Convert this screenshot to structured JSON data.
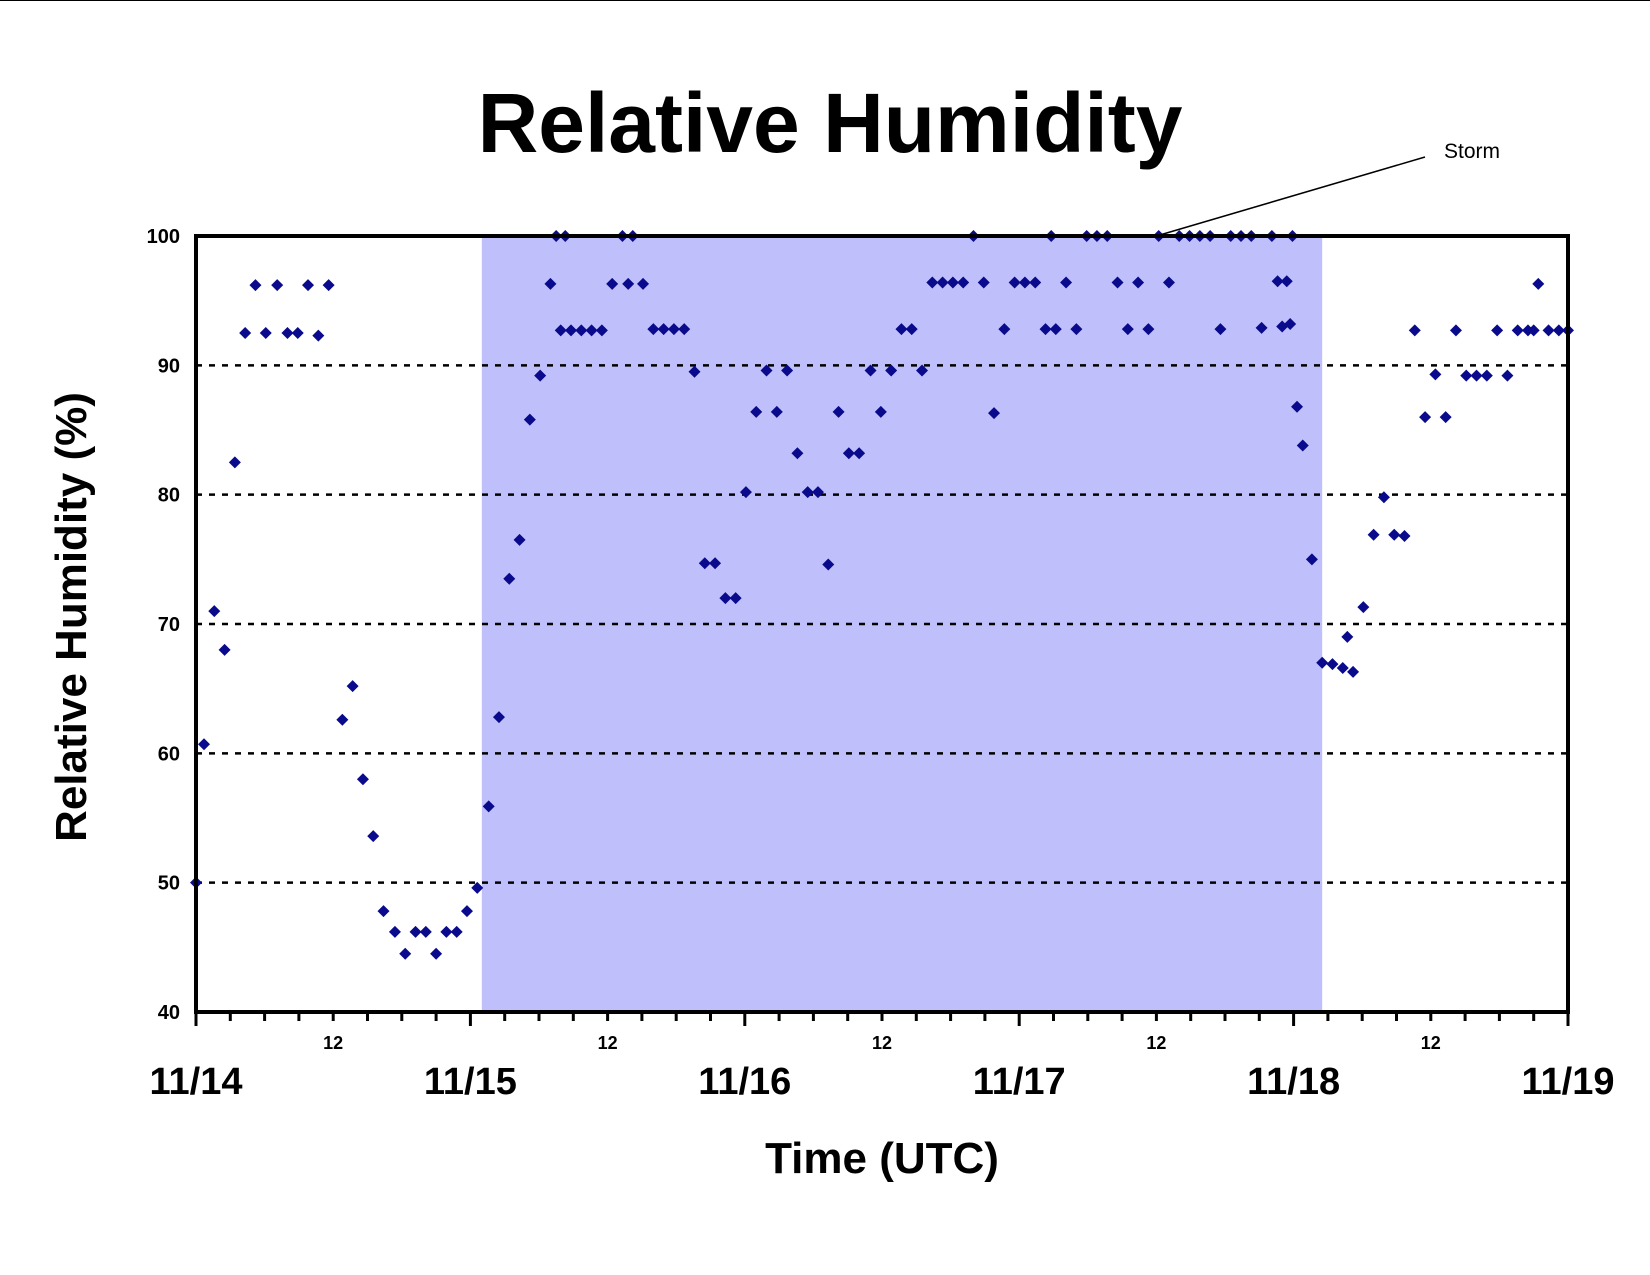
{
  "colors": {
    "storm_band": "#bfc0fb",
    "marker": "#0a0a8c",
    "gridline": "#000000",
    "axis": "#000000",
    "background": "#ffffff"
  },
  "chart_data": {
    "type": "scatter",
    "title": "Relative Humidity",
    "xlabel": "Time (UTC)",
    "ylabel": "Relative Humidity (%)",
    "ylim": [
      40,
      100
    ],
    "yticks": [
      "40",
      "50",
      "60",
      "70",
      "80",
      "90",
      "100"
    ],
    "xlim_days": [
      "11/14",
      "11/19"
    ],
    "date_labels": [
      "11/14",
      "11/15",
      "11/16",
      "11/17",
      "11/18",
      "11/19"
    ],
    "hour_labels": [
      "12",
      "12",
      "12",
      "12",
      "12"
    ],
    "grid": "horizontal dotted",
    "marker": "diamond",
    "shaded_region": {
      "label": "Storm",
      "start": "11/15 03 UTC",
      "end": "11/18 03 UTC"
    },
    "annotation": {
      "text": "Storm",
      "points_to": "11/17 12 UTC, 100%"
    },
    "series": [
      {
        "marker_shape": "diamond",
        "x_unit": "hours since 11/14 00 UTC",
        "points": [
          [
            0,
            50
          ],
          [
            0.7,
            60.7
          ],
          [
            1.6,
            71
          ],
          [
            2.5,
            68
          ],
          [
            3.4,
            82.5
          ],
          [
            4.3,
            92.5
          ],
          [
            5.2,
            96.2
          ],
          [
            6.1,
            92.5
          ],
          [
            7.1,
            96.2
          ],
          [
            8,
            92.5
          ],
          [
            8.9,
            92.5
          ],
          [
            9.8,
            96.2
          ],
          [
            10.7,
            92.3
          ],
          [
            11.6,
            96.2
          ],
          [
            12.8,
            62.6
          ],
          [
            13.7,
            65.2
          ],
          [
            14.6,
            58
          ],
          [
            15.5,
            53.6
          ],
          [
            16.4,
            47.8
          ],
          [
            17.4,
            46.2
          ],
          [
            18.3,
            44.5
          ],
          [
            19.2,
            46.2
          ],
          [
            20.1,
            46.2
          ],
          [
            21.0,
            44.5
          ],
          [
            21.9,
            46.2
          ],
          [
            22.8,
            46.2
          ],
          [
            23.7,
            47.8
          ],
          [
            24.6,
            49.6
          ],
          [
            25.6,
            55.9
          ],
          [
            26.5,
            62.8
          ],
          [
            27.4,
            73.5
          ],
          [
            28.3,
            76.5
          ],
          [
            29.2,
            85.8
          ],
          [
            30.1,
            89.2
          ],
          [
            31.0,
            96.3
          ],
          [
            31.5,
            100
          ],
          [
            31.9,
            92.7
          ],
          [
            32.3,
            100
          ],
          [
            32.8,
            92.7
          ],
          [
            33.7,
            92.7
          ],
          [
            34.6,
            92.7
          ],
          [
            35.5,
            92.7
          ],
          [
            36.4,
            96.3
          ],
          [
            37.3,
            100
          ],
          [
            37.8,
            96.3
          ],
          [
            38.2,
            100
          ],
          [
            39.1,
            96.3
          ],
          [
            40,
            92.8
          ],
          [
            40.9,
            92.8
          ],
          [
            41.8,
            92.8
          ],
          [
            42.7,
            92.8
          ],
          [
            43.6,
            89.5
          ],
          [
            44.5,
            74.7
          ],
          [
            45.4,
            74.7
          ],
          [
            46.3,
            72
          ],
          [
            47.2,
            72
          ],
          [
            48.1,
            80.2
          ],
          [
            49.0,
            86.4
          ],
          [
            49.9,
            89.6
          ],
          [
            50.8,
            86.4
          ],
          [
            51.7,
            89.6
          ],
          [
            52.6,
            83.2
          ],
          [
            53.5,
            80.2
          ],
          [
            54.4,
            80.2
          ],
          [
            55.3,
            74.6
          ],
          [
            56.2,
            86.4
          ],
          [
            57.1,
            83.2
          ],
          [
            58,
            83.2
          ],
          [
            59,
            89.6
          ],
          [
            59.9,
            86.4
          ],
          [
            60.8,
            89.6
          ],
          [
            61.7,
            92.8
          ],
          [
            62.6,
            92.8
          ],
          [
            63.5,
            89.6
          ],
          [
            64.4,
            96.4
          ],
          [
            65.3,
            96.4
          ],
          [
            66.2,
            96.4
          ],
          [
            67.1,
            96.4
          ],
          [
            68,
            100
          ],
          [
            68.9,
            96.4
          ],
          [
            69.8,
            86.3
          ],
          [
            70.7,
            92.8
          ],
          [
            71.6,
            96.4
          ],
          [
            72.5,
            96.4
          ],
          [
            73.4,
            96.4
          ],
          [
            74.3,
            92.8
          ],
          [
            74.8,
            100
          ],
          [
            75.2,
            92.8
          ],
          [
            76.1,
            96.4
          ],
          [
            77,
            92.8
          ],
          [
            77.9,
            100
          ],
          [
            78.8,
            100
          ],
          [
            79.7,
            100
          ],
          [
            80.6,
            96.4
          ],
          [
            81.5,
            92.8
          ],
          [
            82.4,
            96.4
          ],
          [
            83.3,
            92.8
          ],
          [
            84.2,
            100
          ],
          [
            85.1,
            96.4
          ],
          [
            86,
            100
          ],
          [
            86.9,
            100
          ],
          [
            87.8,
            100
          ],
          [
            88.7,
            100
          ],
          [
            89.6,
            92.8
          ],
          [
            90.5,
            100
          ],
          [
            91.4,
            100
          ],
          [
            92.3,
            100
          ],
          [
            93.2,
            92.9
          ],
          [
            94.1,
            100
          ],
          [
            94.6,
            96.5
          ],
          [
            95.0,
            93
          ],
          [
            95.4,
            96.5
          ],
          [
            95.7,
            93.2
          ],
          [
            95.9,
            100
          ],
          [
            96.3,
            86.8
          ],
          [
            96.8,
            83.8
          ],
          [
            97.6,
            75
          ],
          [
            98.5,
            67
          ],
          [
            99.4,
            66.9
          ],
          [
            100.3,
            66.6
          ],
          [
            100.7,
            69
          ],
          [
            101.2,
            66.3
          ],
          [
            102.1,
            71.3
          ],
          [
            103,
            76.9
          ],
          [
            103.9,
            79.8
          ],
          [
            104.8,
            76.9
          ],
          [
            105.7,
            76.8
          ],
          [
            106.6,
            92.7
          ],
          [
            107.5,
            86
          ],
          [
            108.4,
            89.3
          ],
          [
            109.3,
            86
          ],
          [
            110.2,
            92.7
          ],
          [
            111.1,
            89.2
          ],
          [
            112,
            89.2
          ],
          [
            112.9,
            89.2
          ],
          [
            113.8,
            92.7
          ],
          [
            114.7,
            89.2
          ],
          [
            115.6,
            92.7
          ],
          [
            116.5,
            92.7
          ],
          [
            117,
            92.7
          ],
          [
            117.4,
            96.3
          ],
          [
            118.3,
            92.7
          ],
          [
            119.2,
            92.7
          ],
          [
            120,
            92.7
          ]
        ]
      }
    ]
  }
}
